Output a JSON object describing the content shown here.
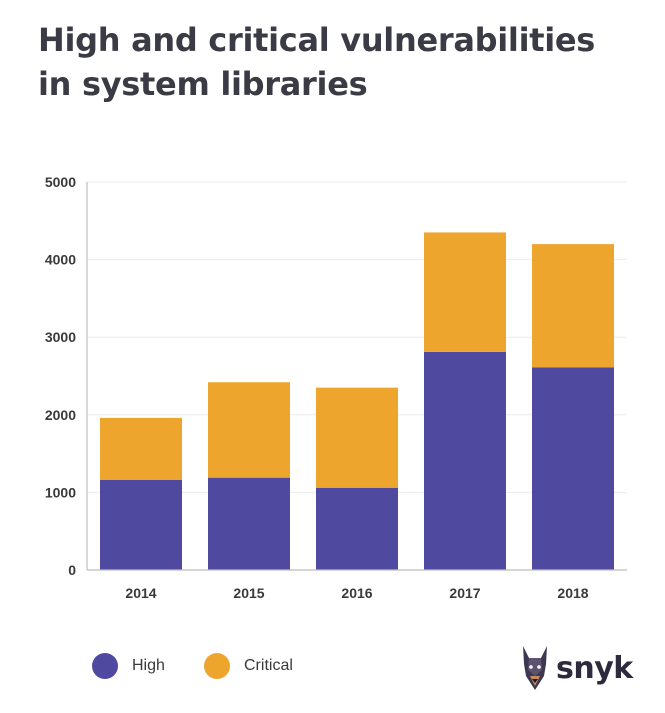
{
  "chart_data": {
    "type": "bar",
    "stacked": true,
    "title_lines": [
      "High and critical vulnerabilities",
      "in system libraries"
    ],
    "categories": [
      "2014",
      "2015",
      "2016",
      "2017",
      "2018"
    ],
    "series": [
      {
        "name": "High",
        "values": [
          1160,
          1190,
          1060,
          2810,
          2610
        ],
        "color": "#4f4a9f"
      },
      {
        "name": "Critical",
        "values": [
          800,
          1230,
          1290,
          1540,
          1590
        ],
        "color": "#eda52e"
      }
    ],
    "ylim": [
      0,
      5000
    ],
    "yticks": [
      "0",
      "1000",
      "2000",
      "3000",
      "4000",
      "5000"
    ],
    "grid": true,
    "legend_position": "bottom-left",
    "xlabel": "",
    "ylabel": ""
  },
  "legend": {
    "high_label": "High",
    "critical_label": "Critical"
  },
  "brand": {
    "name": "snyk",
    "logo_icon": "doberman-icon",
    "text_color": "#2d2a3e"
  }
}
